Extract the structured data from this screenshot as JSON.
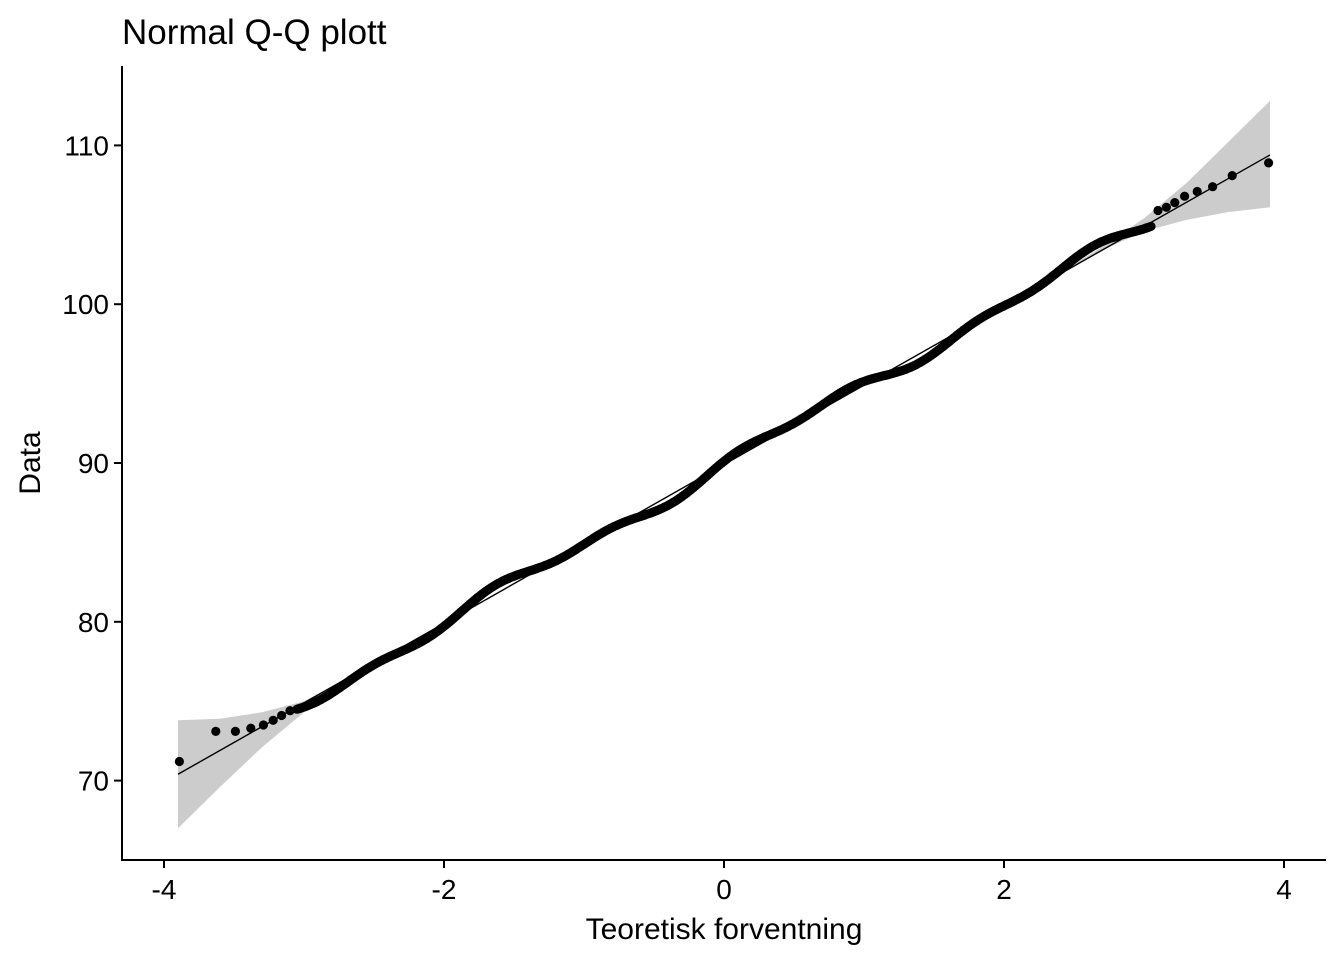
{
  "chart_data": {
    "type": "scatter",
    "title": "Normal Q-Q plott",
    "xlabel": "Teoretisk forventning",
    "ylabel": "Data",
    "xlim": [
      -4.3,
      4.3
    ],
    "ylim": [
      65,
      115
    ],
    "x_ticks": [
      -4,
      -2,
      0,
      2,
      4
    ],
    "x_tick_labels": [
      "-4",
      "-2",
      "0",
      "2",
      "4"
    ],
    "y_ticks": [
      70,
      80,
      90,
      100,
      110
    ],
    "y_tick_labels": [
      "70",
      "80",
      "90",
      "100",
      "110"
    ],
    "grid": false,
    "reference_line": {
      "intercept": 89.9,
      "slope": 5.0
    },
    "confidence_band": {
      "x": [
        -3.9,
        -3.6,
        -3.3,
        -3.0,
        -2.7,
        -2.4,
        -2.0,
        0,
        2.0,
        2.4,
        2.7,
        3.0,
        3.3,
        3.6,
        3.9
      ],
      "lower": [
        67.0,
        69.6,
        72.1,
        74.3,
        76.2,
        77.9,
        79.9,
        89.9,
        99.9,
        101.9,
        103.4,
        104.6,
        105.3,
        105.8,
        106.1
      ],
      "upper": [
        73.8,
        73.9,
        74.3,
        75.0,
        76.4,
        78.0,
        79.9,
        89.9,
        99.9,
        102.0,
        103.6,
        105.4,
        107.6,
        110.2,
        112.8
      ]
    },
    "outer_points": {
      "x": [
        -3.89,
        -3.63,
        -3.49,
        -3.38,
        -3.29,
        -3.22,
        -3.16,
        -3.1,
        3.1,
        3.16,
        3.22,
        3.29,
        3.38,
        3.49,
        3.63,
        3.89
      ],
      "y": [
        71.2,
        73.1,
        73.1,
        73.3,
        73.5,
        73.8,
        74.1,
        74.4,
        105.9,
        106.1,
        106.4,
        106.8,
        107.1,
        107.4,
        108.1,
        108.9
      ]
    },
    "series": [
      {
        "points": 1000
      }
    ]
  }
}
